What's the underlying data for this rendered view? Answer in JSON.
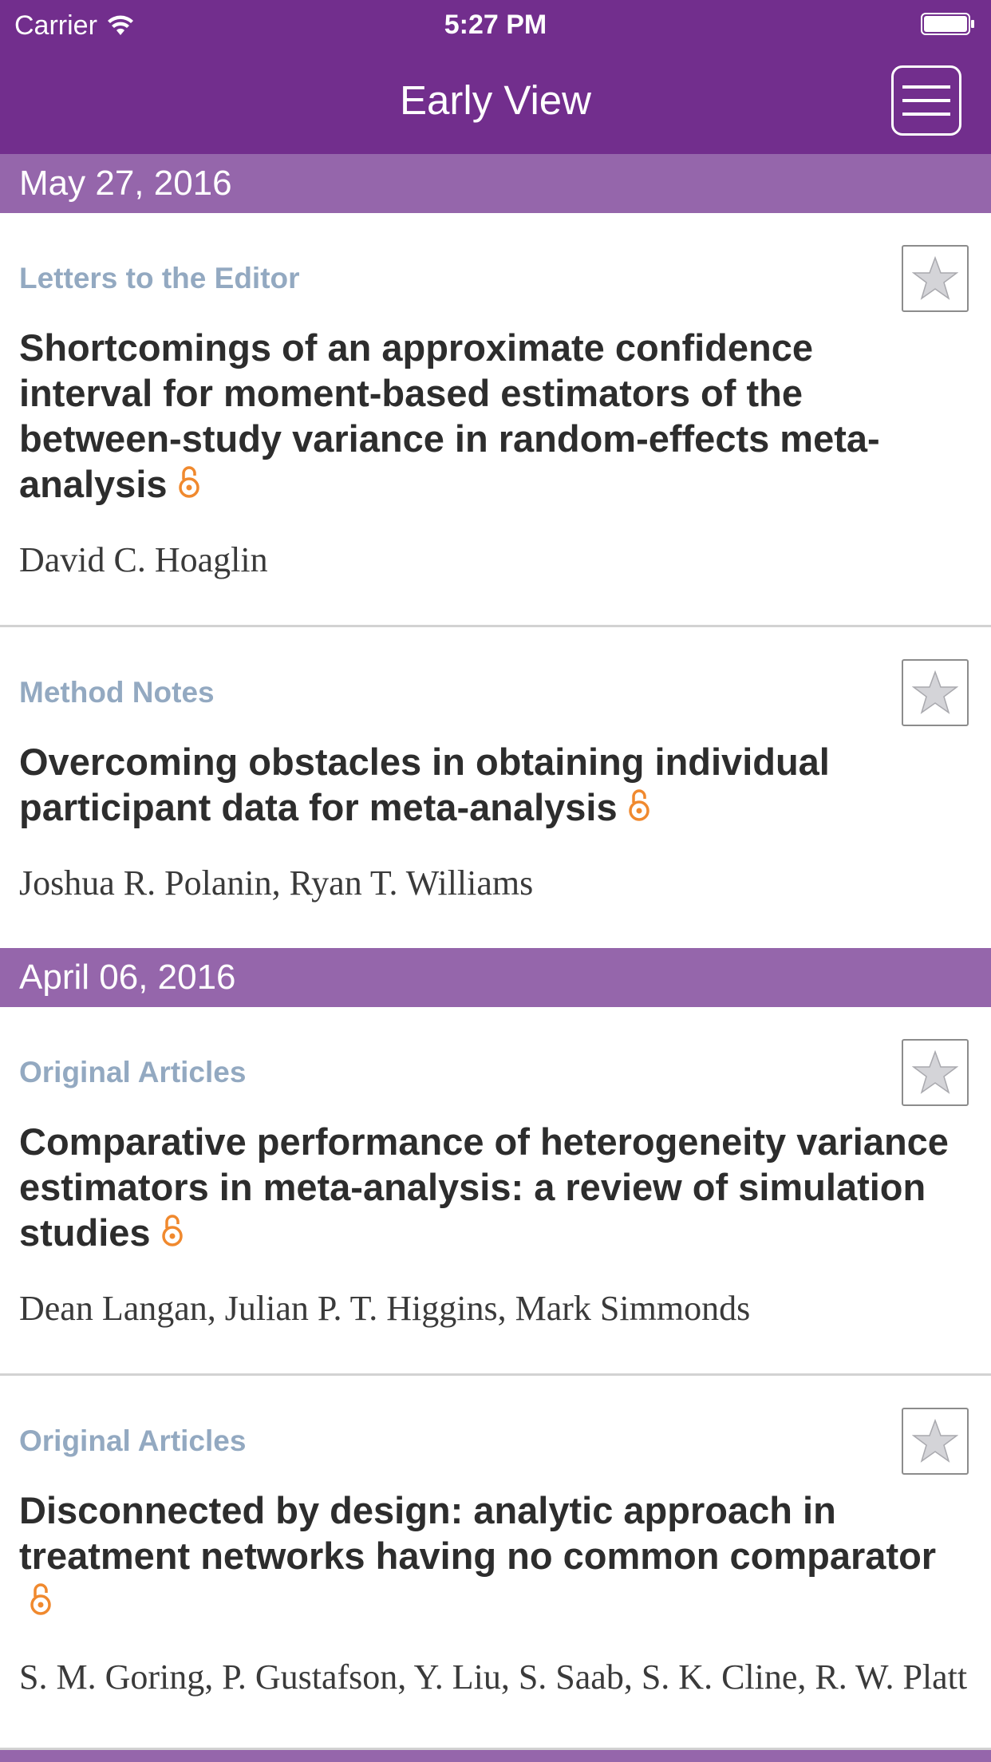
{
  "status_bar": {
    "carrier": "Carrier",
    "time": "5:27 PM"
  },
  "nav": {
    "title": "Early View",
    "menu_icon": "hamburger-menu-icon"
  },
  "colors": {
    "header_bg": "#722e8d",
    "date_header_bg": "#9566ab",
    "category_text": "#93a9c1",
    "open_access": "#f0892e"
  },
  "groups": [
    {
      "date": "May 27, 2016",
      "articles": [
        {
          "category": "Letters to the Editor",
          "title": "Shortcomings of an approximate confidence interval for moment-based estimators of the between-study variance in random-effects meta-analysis",
          "authors": "David C. Hoaglin",
          "open_access": true
        },
        {
          "category": "Method Notes",
          "title": "Overcoming obstacles in obtaining individual participant data for meta-analysis",
          "authors": "Joshua R. Polanin, Ryan T. Williams",
          "open_access": true
        }
      ]
    },
    {
      "date": "April 06, 2016",
      "articles": [
        {
          "category": "Original Articles",
          "title": "Comparative performance of heterogeneity variance estimators in meta-analysis: a review of simulation studies",
          "authors": "Dean Langan, Julian P. T. Higgins, Mark Simmonds",
          "open_access": true
        },
        {
          "category": "Original Articles",
          "title": "Disconnected by design: analytic approach in treatment networks having no common comparator",
          "authors": "S. M. Goring, P. Gustafson, Y. Liu, S. Saab, S. K. Cline, R. W. Platt",
          "open_access": true
        }
      ]
    }
  ]
}
